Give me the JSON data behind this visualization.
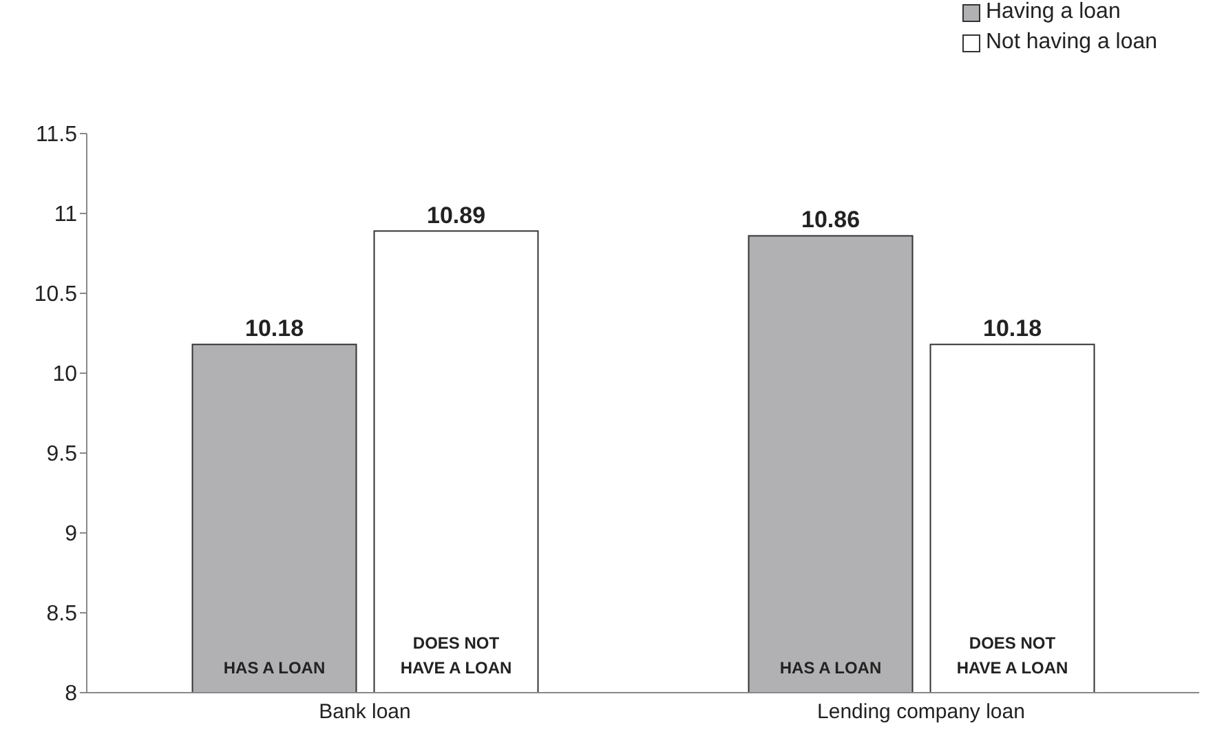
{
  "chart_data": {
    "type": "bar",
    "categories": [
      "Bank loan",
      "Lending company loan"
    ],
    "series": [
      {
        "name": "Having a loan",
        "color": "#b1b1b4",
        "values": [
          10.18,
          10.86
        ]
      },
      {
        "name": "Not having a loan",
        "color": "#ffffff",
        "values": [
          10.89,
          10.18
        ]
      }
    ],
    "ylim": [
      8,
      11.5
    ],
    "yticks": [
      8,
      8.5,
      9,
      9.5,
      10,
      10.5,
      11,
      11.5
    ],
    "grid": false,
    "legend": "top right",
    "data_labels": true,
    "annotations": [
      "HAS A LOAN",
      "DOES NOT HAVE A LOAN",
      "HAS A LOAN",
      "DOES NOT HAVE A LOAN"
    ]
  }
}
